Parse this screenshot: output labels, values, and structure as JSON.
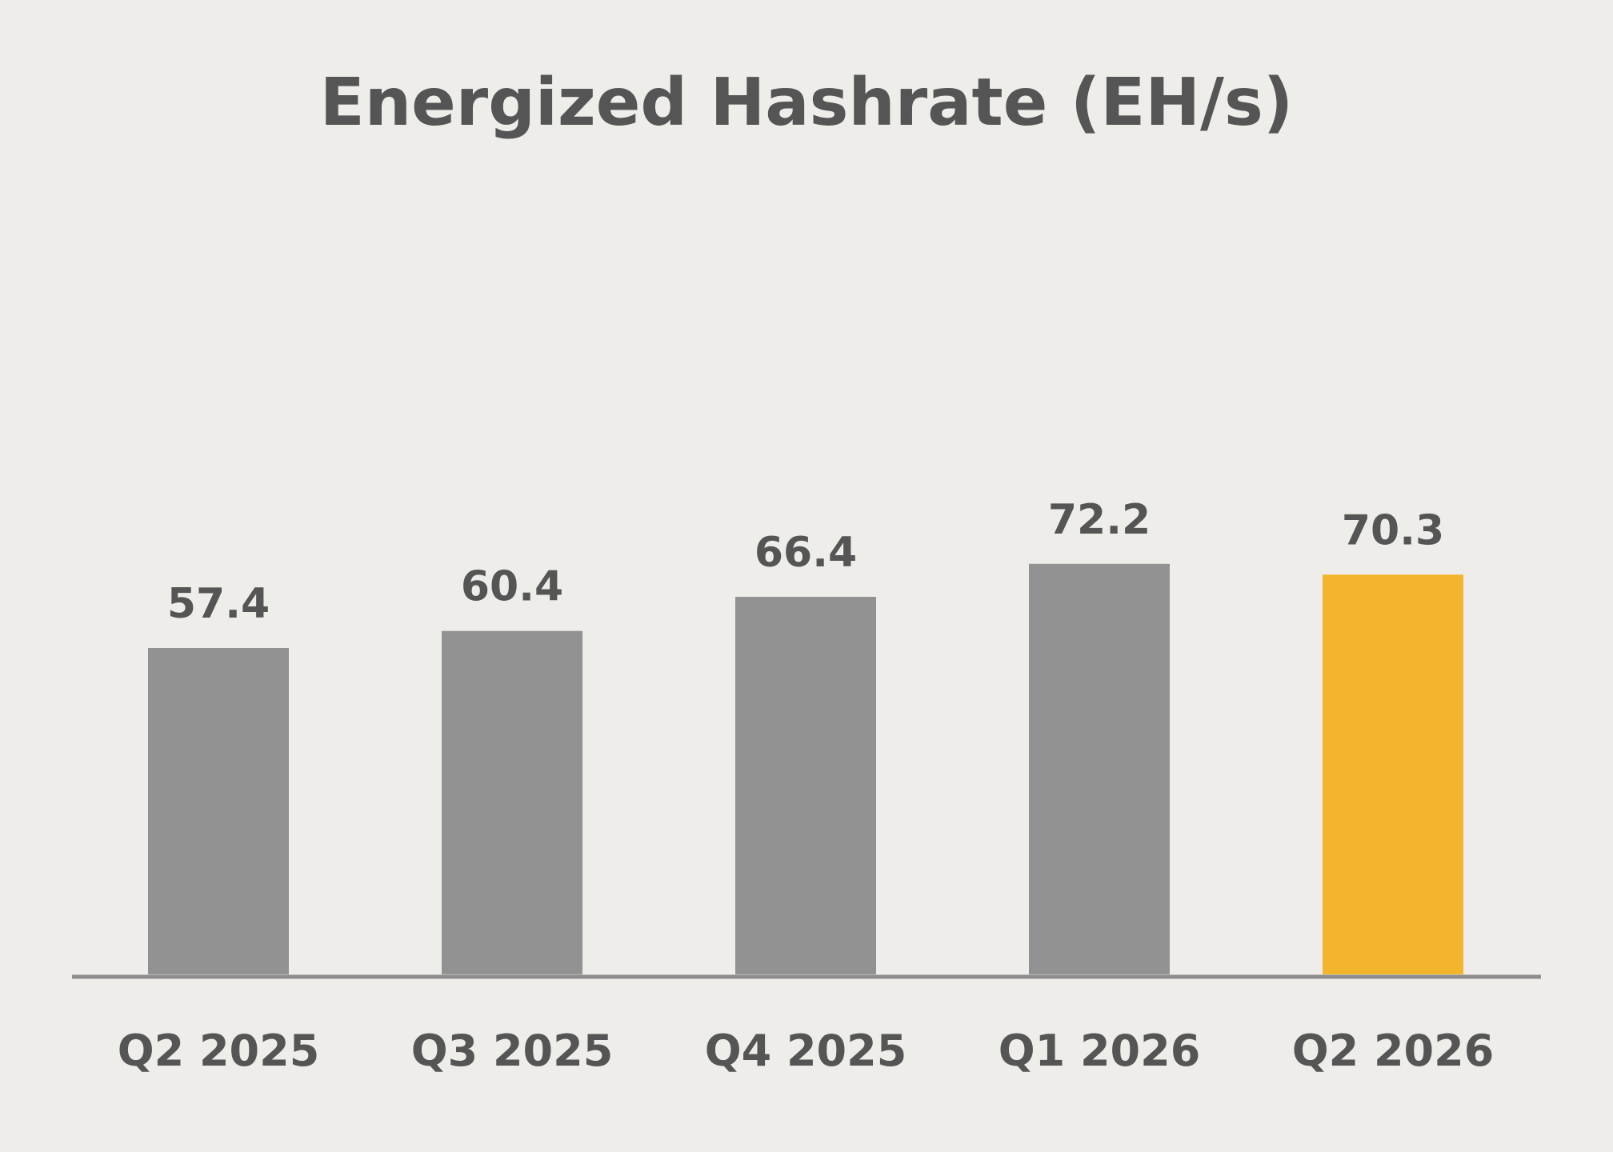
{
  "chart_data": {
    "type": "bar",
    "title": "Energized Hashrate (EH/s)",
    "xlabel": "",
    "ylabel": "",
    "categories": [
      "Q2 2025",
      "Q3 2025",
      "Q4 2025",
      "Q1 2026",
      "Q2 2026"
    ],
    "values": [
      57.4,
      60.4,
      66.4,
      72.2,
      70.3
    ],
    "value_labels": [
      "57.4",
      "60.4",
      "66.4",
      "72.2",
      "70.3"
    ],
    "highlight_index": 4,
    "grid": false,
    "legend": "none"
  },
  "colors": {
    "background": "#eeede9",
    "bar": "#929292",
    "highlight_bar": "#f2b52b",
    "text": "#555555",
    "axis_line": "#8c8c8c"
  }
}
